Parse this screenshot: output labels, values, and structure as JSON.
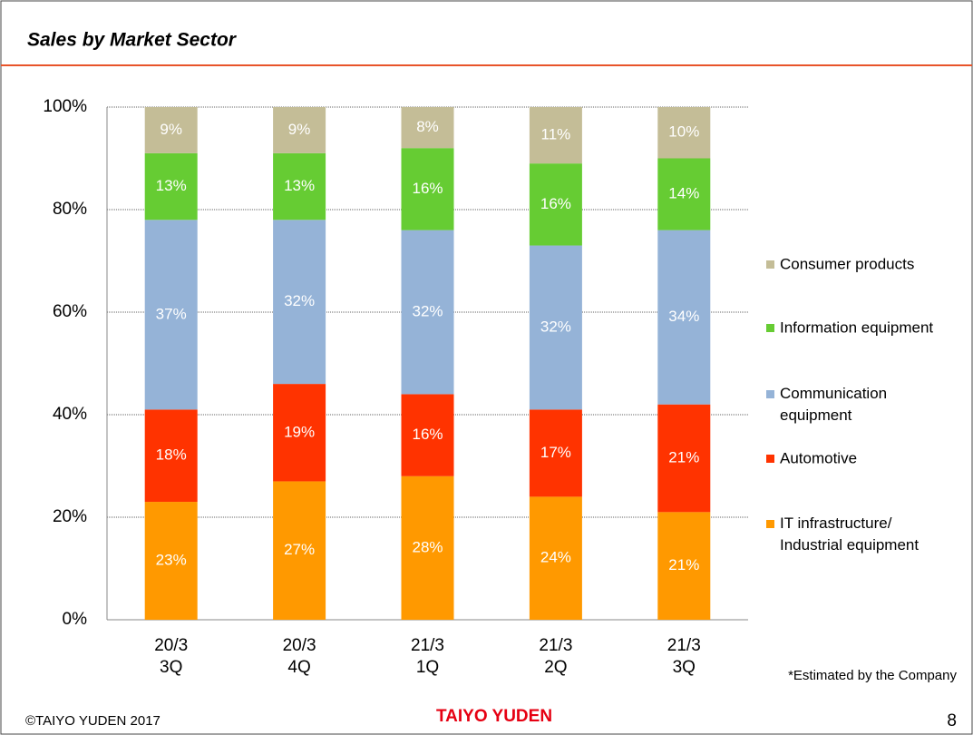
{
  "header": {
    "title": "Sales by Market Sector"
  },
  "chart_data": {
    "type": "stacked_bar",
    "categories": [
      "20/3\n3Q",
      "20/3\n4Q",
      "21/3\n1Q",
      "21/3\n2Q",
      "21/3\n3Q"
    ],
    "series": [
      {
        "name": "IT infrastructure/\nIndustrial equipment",
        "color": "#ff9900",
        "values": [
          23,
          27,
          28,
          24,
          21
        ],
        "value_labels": [
          "23%",
          "27%",
          "28%",
          "24%",
          "21%"
        ]
      },
      {
        "name": "Automotive",
        "color": "#ff3300",
        "values": [
          18,
          19,
          16,
          17,
          21
        ],
        "value_labels": [
          "18%",
          "19%",
          "16%",
          "17%",
          "21%"
        ]
      },
      {
        "name": "Communication\nequipment",
        "color": "#95b3d7",
        "values": [
          37,
          32,
          32,
          32,
          34
        ],
        "value_labels": [
          "37%",
          "32%",
          "32%",
          "32%",
          "34%"
        ]
      },
      {
        "name": "Information equipment",
        "color": "#66cc33",
        "values": [
          13,
          13,
          16,
          16,
          14
        ],
        "value_labels": [
          "13%",
          "13%",
          "16%",
          "16%",
          "14%"
        ]
      },
      {
        "name": "Consumer products",
        "color": "#c4bd97",
        "values": [
          9,
          9,
          8,
          11,
          10
        ],
        "value_labels": [
          "9%",
          "9%",
          "8%",
          "11%",
          "10%"
        ]
      }
    ],
    "ylim": [
      0,
      100
    ],
    "yticks": [
      {
        "value": 0,
        "label": "0%"
      },
      {
        "value": 20,
        "label": "20%"
      },
      {
        "value": 40,
        "label": "40%"
      },
      {
        "value": 60,
        "label": "60%"
      },
      {
        "value": 80,
        "label": "80%"
      },
      {
        "value": 100,
        "label": "100%"
      }
    ],
    "grid": true,
    "legend": "right",
    "note": "*Estimated by the Company"
  },
  "footer": {
    "copyright": "©TAIYO YUDEN 2017",
    "logo": "TAIYO YUDEN",
    "page": "8"
  }
}
